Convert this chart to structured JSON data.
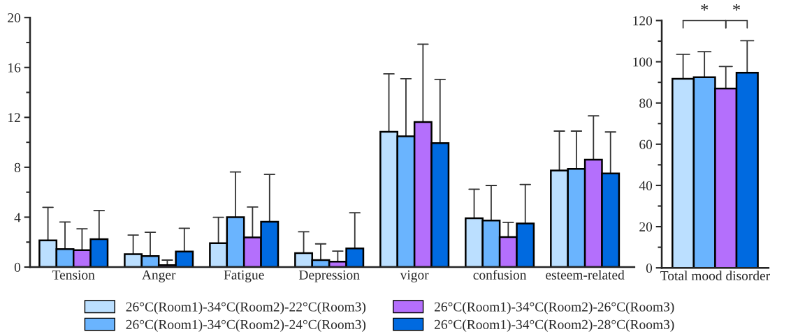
{
  "chart_data": [
    {
      "type": "bar",
      "categories": [
        "Tension",
        "Anger",
        "Fatigue",
        "Depression",
        "vigor",
        "confusion",
        "esteem-related"
      ],
      "ylim": [
        0,
        20
      ],
      "yticks": [
        0,
        4,
        8,
        12,
        16,
        20
      ],
      "grid": false,
      "legend": "bottom",
      "series": [
        {
          "name": "26°C(Room1)-34°C(Room2)-22°C(Room3)",
          "color": "#bbdfff",
          "values": [
            2.14,
            1.04,
            1.92,
            1.12,
            10.85,
            3.91,
            7.74
          ],
          "errors": [
            [
              2.14,
              4.79
            ],
            [
              1.04,
              2.57
            ],
            [
              1.92,
              3.99
            ],
            [
              1.12,
              2.83
            ],
            [
              10.85,
              15.49
            ],
            [
              3.91,
              6.24
            ],
            [
              7.74,
              10.9
            ]
          ]
        },
        {
          "name": "26°C(Room1)-34°C(Room2)-24°C(Room3)",
          "color": "#6ab4fe",
          "values": [
            1.44,
            0.88,
            3.99,
            0.56,
            10.48,
            3.73,
            7.87
          ],
          "errors": [
            [
              1.44,
              3.61
            ],
            [
              0.88,
              2.79
            ],
            [
              3.99,
              7.62
            ],
            [
              0.56,
              1.86
            ],
            [
              10.48,
              15.1
            ],
            [
              3.73,
              6.54
            ],
            [
              7.87,
              10.9
            ]
          ]
        },
        {
          "name": "26°C(Room1)-34°C(Room2)-26°C(Room3)",
          "color": "#b46ffc",
          "values": [
            1.36,
            0.16,
            2.38,
            0.44,
            11.63,
            2.4,
            8.61
          ],
          "errors": [
            [
              1.36,
              3.07
            ],
            [
              0.16,
              0.56
            ],
            [
              2.38,
              4.81
            ],
            [
              0.44,
              1.28
            ],
            [
              11.63,
              17.87
            ],
            [
              2.4,
              3.58
            ],
            [
              8.61,
              12.12
            ]
          ]
        },
        {
          "name": "26°C(Room1)-34°C(Room2)-28°C(Room3)",
          "color": "#006ae0",
          "values": [
            2.24,
            1.24,
            3.63,
            1.5,
            9.93,
            3.49,
            7.51
          ],
          "errors": [
            [
              2.24,
              4.53
            ],
            [
              1.24,
              3.11
            ],
            [
              3.63,
              7.43
            ],
            [
              1.5,
              4.35
            ],
            [
              9.93,
              15.04
            ],
            [
              3.49,
              6.62
            ],
            [
              7.51,
              10.83
            ]
          ]
        }
      ]
    },
    {
      "type": "bar",
      "categories": [
        "Total mood disorder"
      ],
      "ylim": [
        0,
        120
      ],
      "yticks": [
        0,
        20,
        40,
        60,
        80,
        100,
        120
      ],
      "grid": false,
      "legend": false,
      "annotations": [
        "*",
        "*"
      ],
      "series": [
        {
          "color": "#bbdfff",
          "values": [
            91.7
          ],
          "errors": [
            [
              91.7,
              103.6
            ]
          ]
        },
        {
          "color": "#6ab4fe",
          "values": [
            92.5
          ],
          "errors": [
            [
              92.5,
              104.9
            ]
          ]
        },
        {
          "color": "#b46ffc",
          "values": [
            87.0
          ],
          "errors": [
            [
              87.0,
              97.7
            ]
          ]
        },
        {
          "color": "#006ae0",
          "values": [
            94.7
          ],
          "errors": [
            [
              94.7,
              110.2
            ]
          ]
        }
      ]
    }
  ]
}
